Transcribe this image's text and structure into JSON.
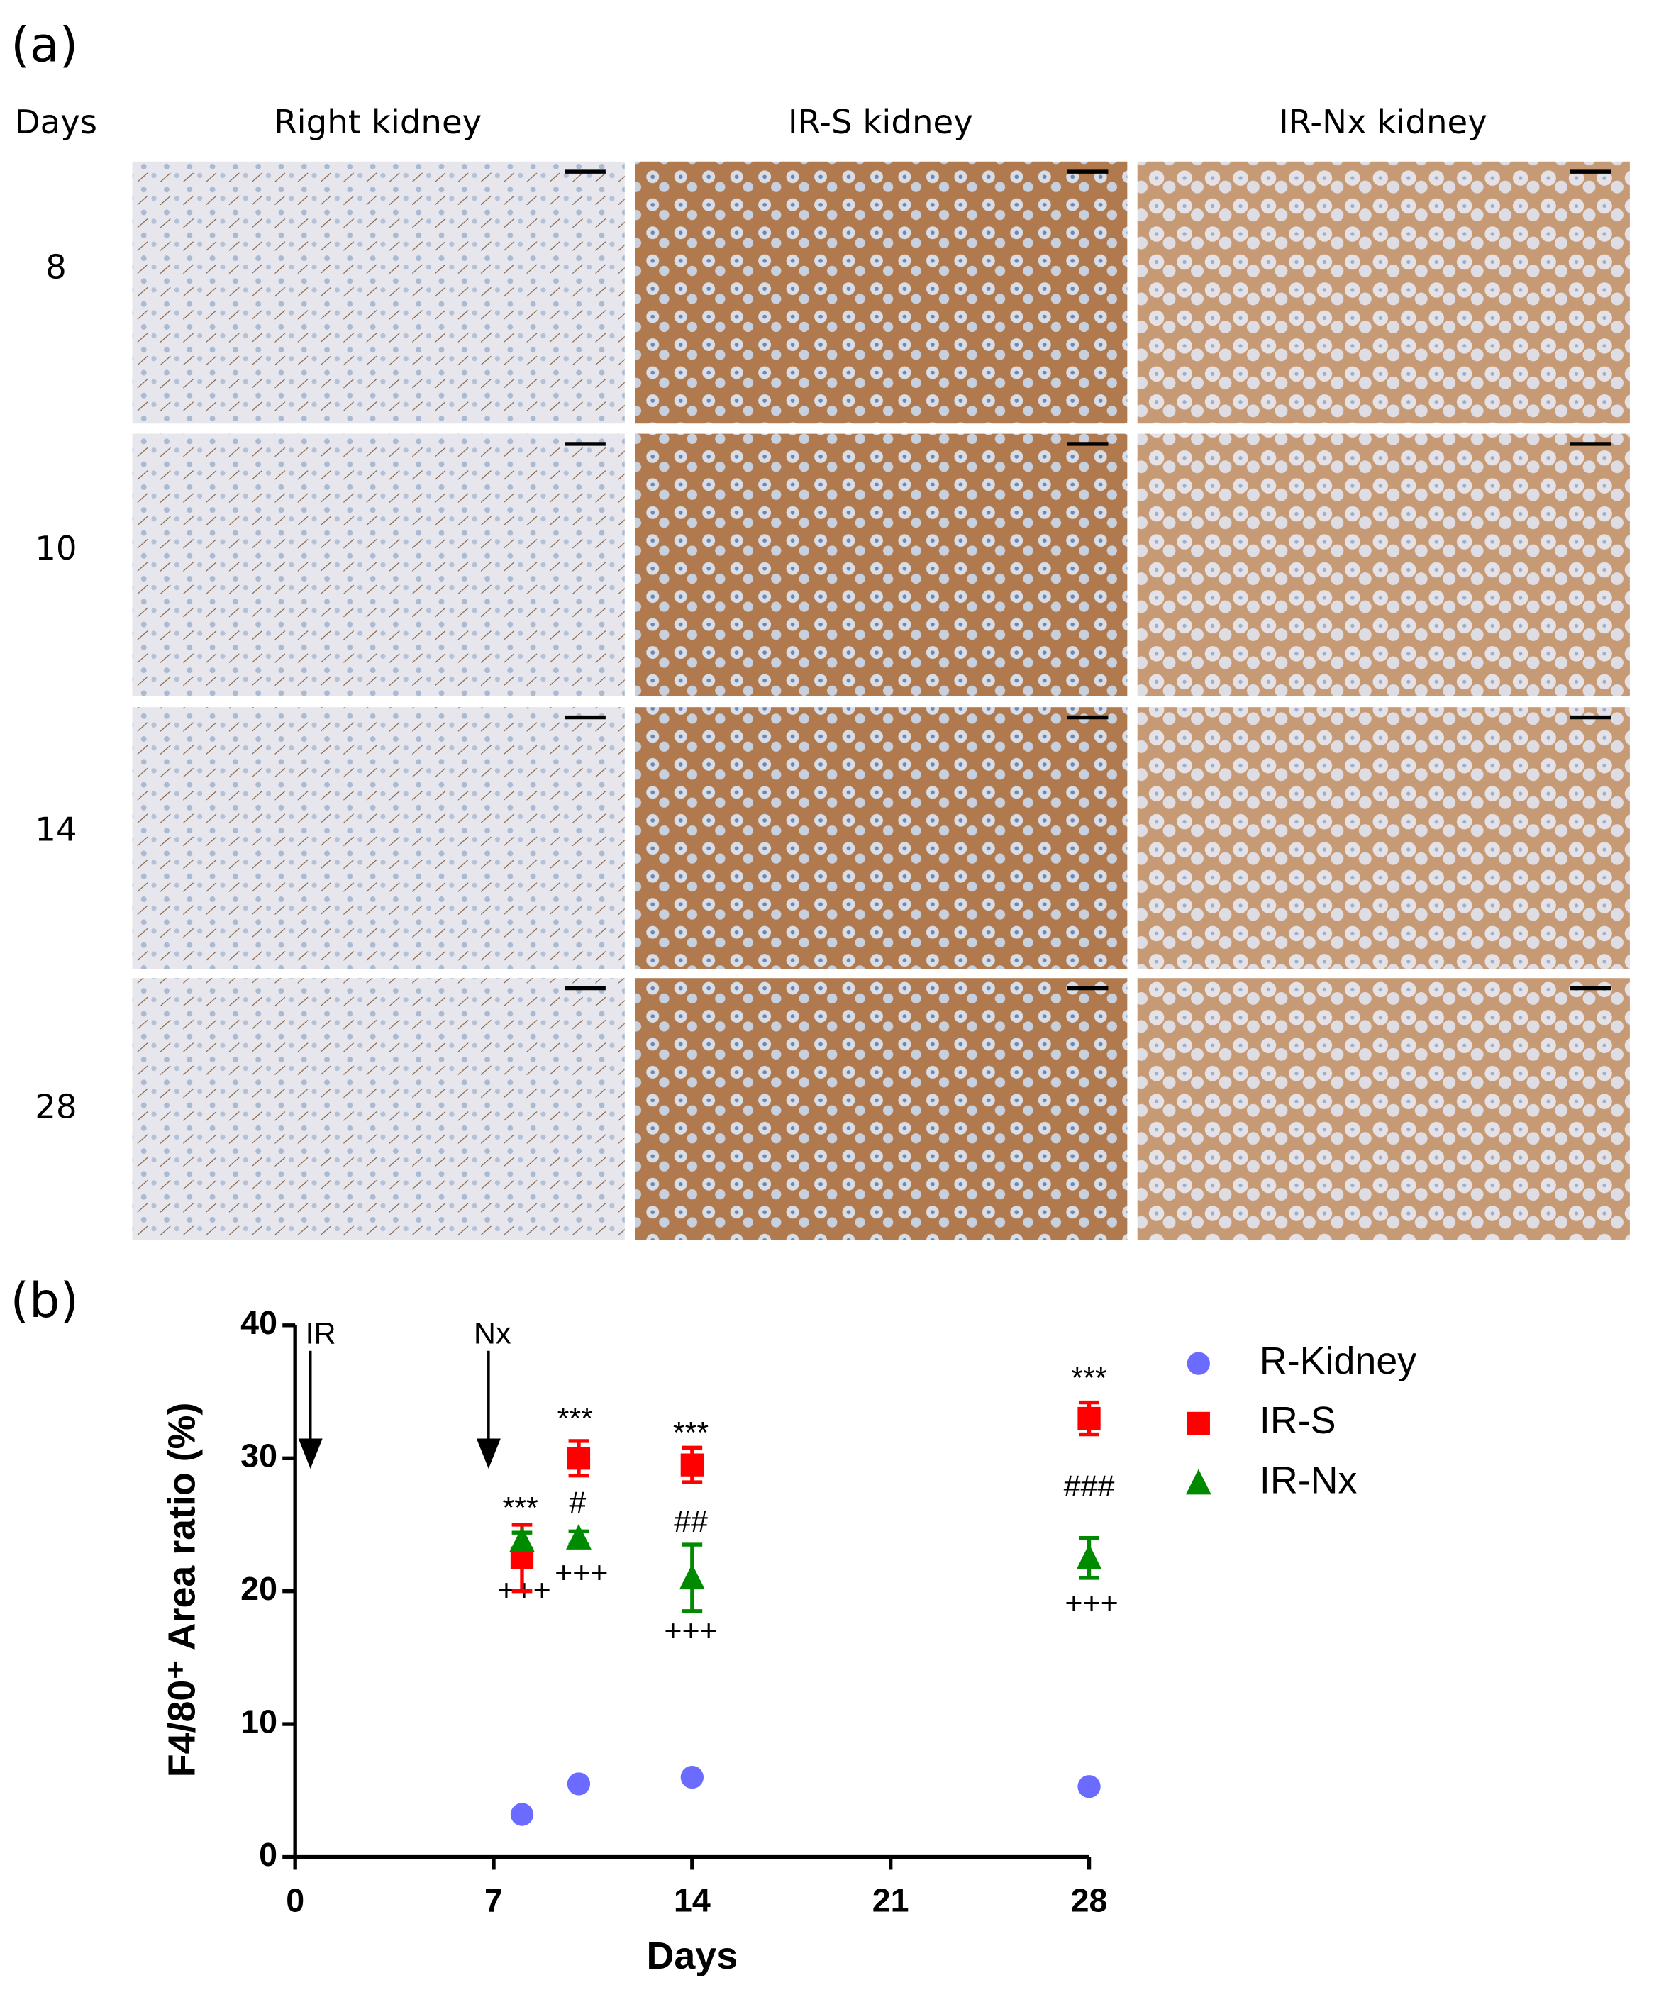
{
  "panel_a": {
    "label": "(a)",
    "row_header": "Days",
    "columns": [
      "Right kidney",
      "IR-S kidney",
      "IR-Nx kidney"
    ],
    "rows": [
      "8",
      "10",
      "14",
      "28"
    ]
  },
  "chart_data": {
    "type": "scatter",
    "panel_label": "(b)",
    "x_label": "Days",
    "y_label": "F4/80⁺ Area ratio (%)",
    "x": [
      8,
      10,
      14,
      28
    ],
    "series": [
      {
        "name": "R-Kidney",
        "color": "#6b6bff",
        "marker": "circle",
        "values": [
          3.2,
          5.5,
          6.0,
          5.3
        ]
      },
      {
        "name": "IR-S",
        "color": "#ff0000",
        "marker": "square",
        "values": [
          22.5,
          30.0,
          29.5,
          33.0
        ],
        "errors": [
          2.5,
          1.3,
          1.3,
          1.2
        ]
      },
      {
        "name": "IR-Nx",
        "color": "#008a00",
        "marker": "triangle",
        "values": [
          23.8,
          24.0,
          21.0,
          22.5
        ],
        "errors": [
          0.6,
          0.5,
          2.5,
          1.5
        ]
      }
    ],
    "annotations": [
      "IR",
      "Nx",
      "***",
      "+++",
      "***",
      "#",
      "+++",
      "***",
      "##",
      "+++",
      "***",
      "###",
      "+++"
    ],
    "xlim": [
      0,
      28
    ],
    "xticks": [
      0,
      7,
      14,
      21,
      28
    ],
    "ylim": [
      0,
      40
    ],
    "yticks": [
      0,
      10,
      20,
      30,
      40
    ]
  }
}
